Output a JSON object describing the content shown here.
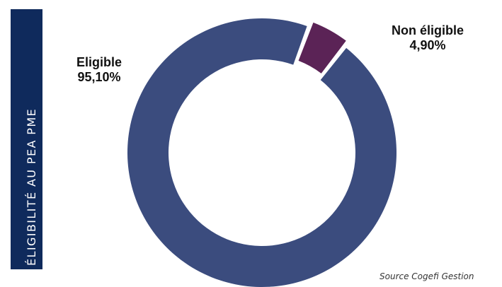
{
  "side_title": "ÉLIGIBILITÉ  AU PEA PME",
  "source": "Source Cogefi Gestion",
  "chart_data": {
    "type": "pie",
    "donut": true,
    "categories": [
      "Eligible",
      "Non éligible"
    ],
    "values": [
      95.1,
      4.9
    ],
    "value_labels": [
      "95,10%",
      "4,90%"
    ],
    "colors": [
      "#3b4c7e",
      "#5b2356"
    ],
    "exploded": [
      "Non éligible"
    ]
  }
}
